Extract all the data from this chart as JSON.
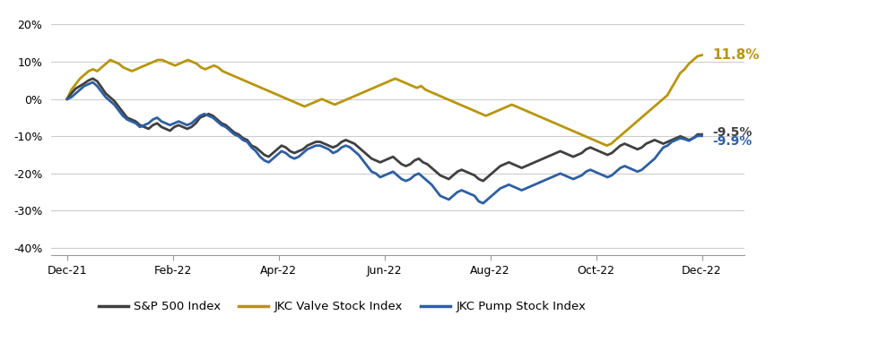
{
  "title": "",
  "sp500_color": "#404040",
  "valve_color": "#B8960C",
  "pump_color": "#2E5FA3",
  "sp500_label": "S&P 500 Index",
  "valve_label": "JKC Valve Stock Index",
  "pump_label": "JKC Pump Stock Index",
  "end_labels": {
    "valve": "11.8%",
    "sp500": "-9.5%",
    "pump": "-9.9%"
  },
  "end_label_colors": {
    "valve": "#B8960C",
    "sp500": "#404040",
    "pump": "#2E5FA3"
  },
  "yticks": [
    -40,
    -30,
    -20,
    -10,
    0,
    10,
    20
  ],
  "ylim": [
    -42,
    23
  ],
  "xtick_labels": [
    "Dec-21",
    "Feb-22",
    "Apr-22",
    "Jun-22",
    "Aug-22",
    "Oct-22",
    "Dec-22"
  ],
  "grid_color": "#cccccc",
  "bg_color": "#ffffff",
  "line_width": 2.0,
  "sp500": [
    0.0,
    1.5,
    2.8,
    3.5,
    4.2,
    5.0,
    5.5,
    4.8,
    3.2,
    1.5,
    0.5,
    -0.5,
    -2.0,
    -3.5,
    -5.0,
    -5.5,
    -6.0,
    -7.0,
    -7.5,
    -8.0,
    -7.0,
    -6.5,
    -7.5,
    -8.0,
    -8.5,
    -7.5,
    -7.0,
    -7.5,
    -8.0,
    -7.5,
    -6.5,
    -5.0,
    -4.5,
    -4.0,
    -4.5,
    -5.5,
    -6.5,
    -7.0,
    -8.0,
    -9.0,
    -9.5,
    -10.5,
    -11.0,
    -12.5,
    -13.0,
    -14.0,
    -15.0,
    -15.5,
    -14.5,
    -13.5,
    -12.5,
    -13.0,
    -14.0,
    -14.5,
    -14.0,
    -13.5,
    -12.5,
    -12.0,
    -11.5,
    -11.5,
    -12.0,
    -12.5,
    -13.0,
    -12.5,
    -11.5,
    -11.0,
    -11.5,
    -12.0,
    -13.0,
    -14.0,
    -15.0,
    -16.0,
    -16.5,
    -17.0,
    -16.5,
    -16.0,
    -15.5,
    -16.5,
    -17.5,
    -18.0,
    -17.5,
    -16.5,
    -16.0,
    -17.0,
    -17.5,
    -18.5,
    -19.5,
    -20.5,
    -21.0,
    -21.5,
    -20.5,
    -19.5,
    -19.0,
    -19.5,
    -20.0,
    -20.5,
    -21.5,
    -22.0,
    -21.0,
    -20.0,
    -19.0,
    -18.0,
    -17.5,
    -17.0,
    -17.5,
    -18.0,
    -18.5,
    -18.0,
    -17.5,
    -17.0,
    -16.5,
    -16.0,
    -15.5,
    -15.0,
    -14.5,
    -14.0,
    -14.5,
    -15.0,
    -15.5,
    -15.0,
    -14.5,
    -13.5,
    -13.0,
    -13.5,
    -14.0,
    -14.5,
    -15.0,
    -14.5,
    -13.5,
    -12.5,
    -12.0,
    -12.5,
    -13.0,
    -13.5,
    -13.0,
    -12.0,
    -11.5,
    -11.0,
    -11.5,
    -12.0,
    -11.5,
    -11.0,
    -10.5,
    -10.0,
    -10.5,
    -11.0,
    -10.5,
    -9.5,
    -9.5
  ],
  "valve": [
    0.0,
    2.5,
    4.0,
    5.5,
    6.5,
    7.5,
    8.0,
    7.5,
    8.5,
    9.5,
    10.5,
    10.0,
    9.5,
    8.5,
    8.0,
    7.5,
    8.0,
    8.5,
    9.0,
    9.5,
    10.0,
    10.5,
    10.5,
    10.0,
    9.5,
    9.0,
    9.5,
    10.0,
    10.5,
    10.0,
    9.5,
    8.5,
    8.0,
    8.5,
    9.0,
    8.5,
    7.5,
    7.0,
    6.5,
    6.0,
    5.5,
    5.0,
    4.5,
    4.0,
    3.5,
    3.0,
    2.5,
    2.0,
    1.5,
    1.0,
    0.5,
    0.0,
    -0.5,
    -1.0,
    -1.5,
    -2.0,
    -1.5,
    -1.0,
    -0.5,
    0.0,
    -0.5,
    -1.0,
    -1.5,
    -1.0,
    -0.5,
    0.0,
    0.5,
    1.0,
    1.5,
    2.0,
    2.5,
    3.0,
    3.5,
    4.0,
    4.5,
    5.0,
    5.5,
    5.0,
    4.5,
    4.0,
    3.5,
    3.0,
    3.5,
    2.5,
    2.0,
    1.5,
    1.0,
    0.5,
    0.0,
    -0.5,
    -1.0,
    -1.5,
    -2.0,
    -2.5,
    -3.0,
    -3.5,
    -4.0,
    -4.5,
    -4.0,
    -3.5,
    -3.0,
    -2.5,
    -2.0,
    -1.5,
    -2.0,
    -2.5,
    -3.0,
    -3.5,
    -4.0,
    -4.5,
    -5.0,
    -5.5,
    -6.0,
    -6.5,
    -7.0,
    -7.5,
    -8.0,
    -8.5,
    -9.0,
    -9.5,
    -10.0,
    -10.5,
    -11.0,
    -11.5,
    -12.0,
    -12.5,
    -12.0,
    -11.0,
    -10.0,
    -9.0,
    -8.0,
    -7.0,
    -6.0,
    -5.0,
    -4.0,
    -3.0,
    -2.0,
    -1.0,
    0.0,
    1.0,
    3.0,
    5.0,
    7.0,
    8.0,
    9.5,
    10.5,
    11.5,
    11.8
  ],
  "pump": [
    0.0,
    0.5,
    1.5,
    2.5,
    3.5,
    4.0,
    4.5,
    3.5,
    2.0,
    0.5,
    -0.5,
    -1.5,
    -3.0,
    -4.5,
    -5.5,
    -6.0,
    -6.5,
    -7.5,
    -7.0,
    -6.5,
    -5.5,
    -5.0,
    -6.0,
    -6.5,
    -7.0,
    -6.5,
    -6.0,
    -6.5,
    -7.0,
    -6.5,
    -5.5,
    -4.5,
    -4.0,
    -4.5,
    -5.0,
    -6.0,
    -7.0,
    -7.5,
    -8.5,
    -9.5,
    -10.0,
    -11.0,
    -11.5,
    -13.0,
    -14.0,
    -15.5,
    -16.5,
    -17.0,
    -16.0,
    -15.0,
    -14.0,
    -14.5,
    -15.5,
    -16.0,
    -15.5,
    -14.5,
    -13.5,
    -13.0,
    -12.5,
    -12.5,
    -13.0,
    -13.5,
    -14.5,
    -14.0,
    -13.0,
    -12.5,
    -13.0,
    -14.0,
    -15.0,
    -16.5,
    -18.0,
    -19.5,
    -20.0,
    -21.0,
    -20.5,
    -20.0,
    -19.5,
    -20.5,
    -21.5,
    -22.0,
    -21.5,
    -20.5,
    -20.0,
    -21.0,
    -22.0,
    -23.0,
    -24.5,
    -26.0,
    -26.5,
    -27.0,
    -26.0,
    -25.0,
    -24.5,
    -25.0,
    -25.5,
    -26.0,
    -27.5,
    -28.0,
    -27.0,
    -26.0,
    -25.0,
    -24.0,
    -23.5,
    -23.0,
    -23.5,
    -24.0,
    -24.5,
    -24.0,
    -23.5,
    -23.0,
    -22.5,
    -22.0,
    -21.5,
    -21.0,
    -20.5,
    -20.0,
    -20.5,
    -21.0,
    -21.5,
    -21.0,
    -20.5,
    -19.5,
    -19.0,
    -19.5,
    -20.0,
    -20.5,
    -21.0,
    -20.5,
    -19.5,
    -18.5,
    -18.0,
    -18.5,
    -19.0,
    -19.5,
    -19.0,
    -18.0,
    -17.0,
    -16.0,
    -14.5,
    -13.0,
    -12.5,
    -11.5,
    -11.0,
    -10.5,
    -10.8,
    -11.2,
    -10.5,
    -9.9,
    -9.9
  ]
}
